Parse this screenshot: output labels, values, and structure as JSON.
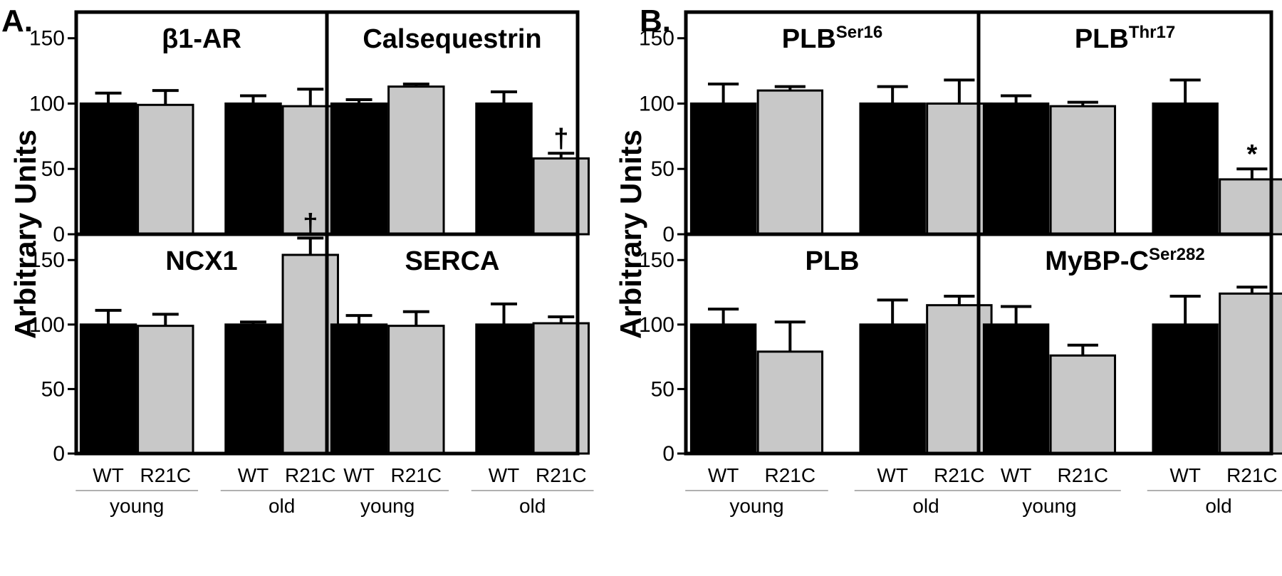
{
  "figure": {
    "colors": {
      "wt": "#000000",
      "r21c": "#c8c8c8"
    }
  },
  "chart_data": [
    {
      "panel": "A.",
      "type": "bar",
      "ylabel": "Arbitrary Units",
      "ylim": [
        0,
        170
      ],
      "yticks": [
        0,
        50,
        100,
        150
      ],
      "categories": [
        "WT",
        "R21C",
        "WT",
        "R21C"
      ],
      "groups": [
        "young",
        "old"
      ],
      "subplots": [
        {
          "title": "β1-AR",
          "sup": "",
          "values": [
            100,
            99,
            100,
            98
          ],
          "errors": [
            8,
            11,
            6,
            13
          ],
          "marks": [
            "",
            "",
            "",
            ""
          ]
        },
        {
          "title": "Calsequestrin",
          "sup": "",
          "values": [
            100,
            113,
            100,
            58
          ],
          "errors": [
            3,
            2,
            9,
            4
          ],
          "marks": [
            "",
            "",
            "",
            "†"
          ]
        },
        {
          "title": "NCX1",
          "sup": "",
          "values": [
            100,
            99,
            100,
            154
          ],
          "errors": [
            11,
            9,
            2,
            13
          ],
          "marks": [
            "",
            "",
            "",
            "†"
          ]
        },
        {
          "title": "SERCA",
          "sup": "",
          "values": [
            100,
            99,
            100,
            101
          ],
          "errors": [
            7,
            11,
            16,
            5
          ],
          "marks": [
            "",
            "",
            "",
            ""
          ]
        }
      ]
    },
    {
      "panel": "B.",
      "type": "bar",
      "ylabel": "Arbitrary Units",
      "ylim": [
        0,
        170
      ],
      "yticks": [
        0,
        50,
        100,
        150
      ],
      "categories": [
        "WT",
        "R21C",
        "WT",
        "R21C"
      ],
      "groups": [
        "young",
        "old"
      ],
      "subplots": [
        {
          "title": "PLB",
          "sup": "Ser16",
          "values": [
            100,
            110,
            100,
            100
          ],
          "errors": [
            15,
            3,
            13,
            18
          ],
          "marks": [
            "",
            "",
            "",
            ""
          ]
        },
        {
          "title": "PLB",
          "sup": "Thr17",
          "values": [
            100,
            98,
            100,
            42
          ],
          "errors": [
            6,
            3,
            18,
            8
          ],
          "marks": [
            "",
            "",
            "",
            "*"
          ]
        },
        {
          "title": "PLB",
          "sup": "",
          "values": [
            100,
            79,
            100,
            115
          ],
          "errors": [
            12,
            23,
            19,
            7
          ],
          "marks": [
            "",
            "",
            "",
            ""
          ]
        },
        {
          "title": "MyBP-C",
          "sup": "Ser282",
          "values": [
            100,
            76,
            100,
            124
          ],
          "errors": [
            14,
            8,
            22,
            5
          ],
          "marks": [
            "",
            "",
            "",
            ""
          ]
        }
      ]
    }
  ]
}
